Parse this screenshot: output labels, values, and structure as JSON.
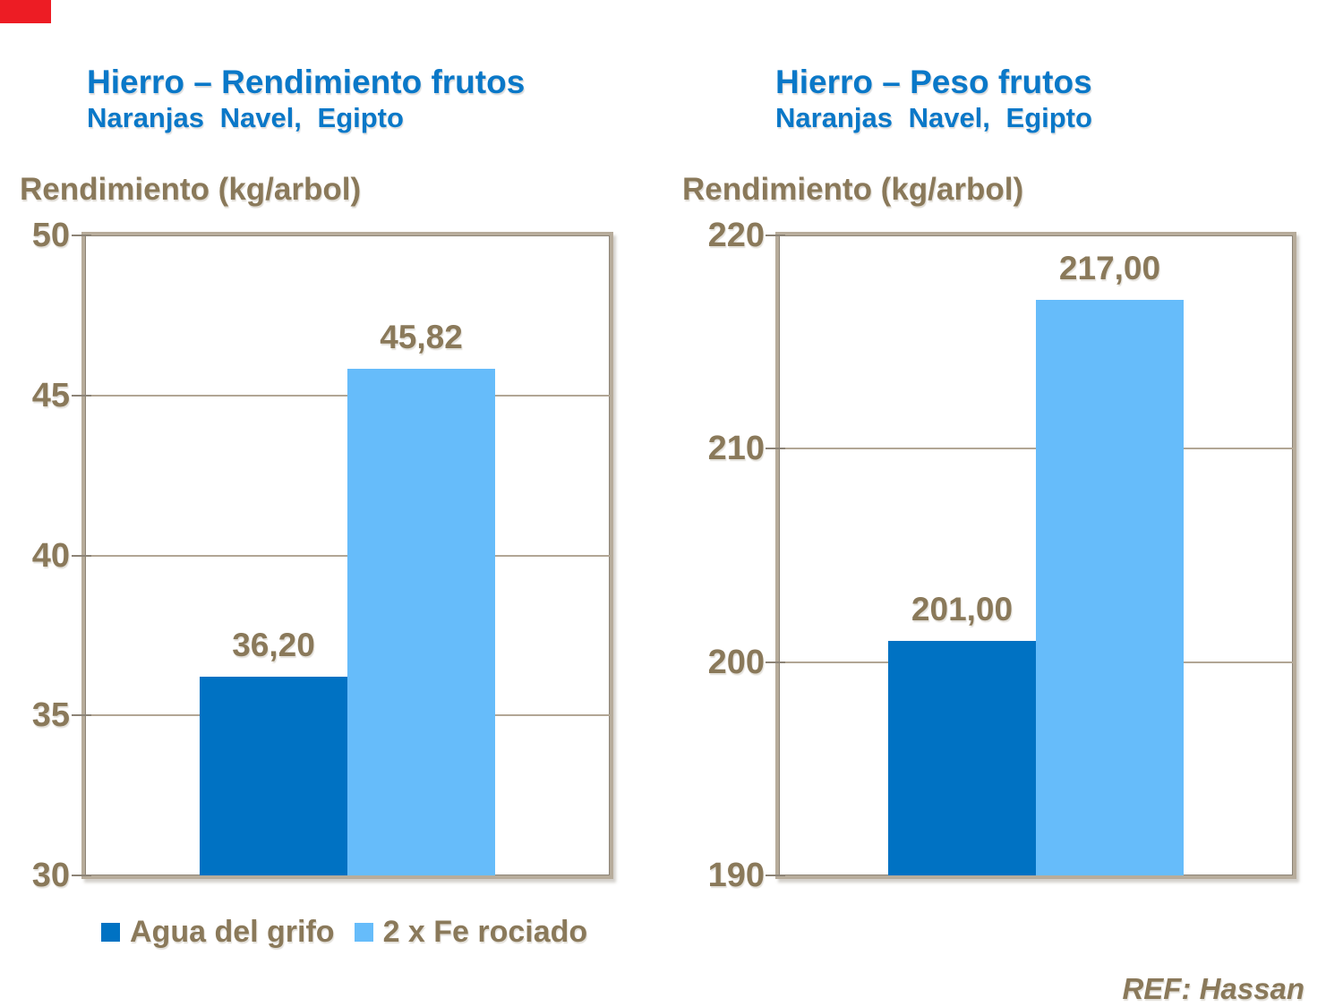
{
  "page": {
    "background": "#FFFFFF",
    "corner_mark_color": "#ED1C24"
  },
  "colors": {
    "title_blue": "#0A78C8",
    "text_brown": "#8A795A",
    "grid": "#B2A695",
    "frame": "#B7AC9B",
    "frame_inner": "#8C8376",
    "bar_dark": "#0072C3",
    "bar_light": "#66BCFA"
  },
  "chart_data": [
    {
      "type": "bar",
      "title": "Hierro – Rendimiento frutos",
      "subtitle": "Naranjas Navel, Egipto",
      "ylabel": "Rendimiento (kg/arbol)",
      "categories": [
        "Agua del grifo",
        "2 x Fe rociado"
      ],
      "values": [
        36.2,
        45.82
      ],
      "value_labels": [
        "36,20",
        "45,82"
      ],
      "ylim": [
        30,
        50
      ],
      "yticks": [
        30,
        35,
        40,
        45,
        50
      ],
      "ytick_labels": [
        "30",
        "35",
        "40",
        "45",
        "50"
      ],
      "grid": true,
      "legend_position": "below",
      "bar_colors": [
        "#0072C3",
        "#66BCFA"
      ]
    },
    {
      "type": "bar",
      "title": "Hierro – Peso frutos",
      "subtitle": "Naranjas Navel, Egipto",
      "ylabel": "Rendimiento (kg/arbol)",
      "categories": [
        "Agua del grifo",
        "2 x Fe rociado"
      ],
      "values": [
        201,
        217
      ],
      "value_labels": [
        "201,00",
        "217,00"
      ],
      "ylim": [
        190,
        220
      ],
      "yticks": [
        190,
        200,
        210,
        220
      ],
      "ytick_labels": [
        "190",
        "200",
        "210",
        "220"
      ],
      "grid": true,
      "legend_position": "none",
      "bar_colors": [
        "#0072C3",
        "#66BCFA"
      ]
    }
  ],
  "legend": {
    "items": [
      {
        "label": "Agua del grifo",
        "color": "#0072C3"
      },
      {
        "label": "2 x Fe rociado",
        "color": "#66BCFA"
      }
    ]
  },
  "footer": {
    "ref": "REF: Hassan"
  }
}
